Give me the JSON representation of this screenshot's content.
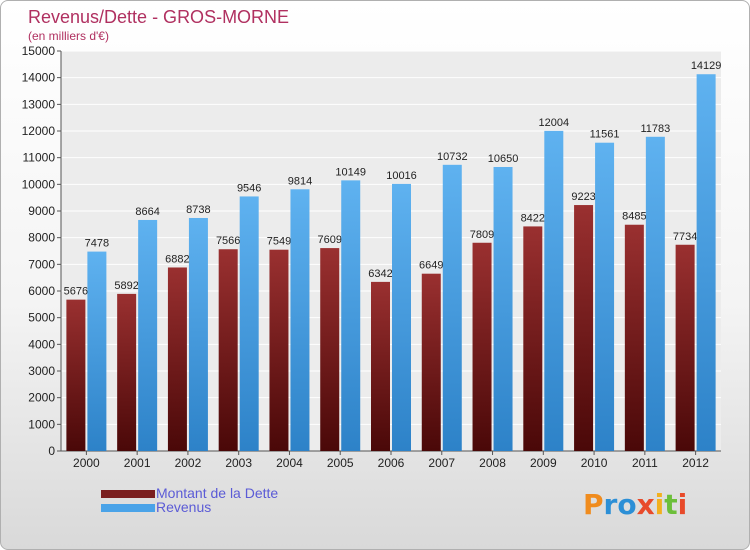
{
  "title": "Revenus/Dette - GROS-MORNE",
  "subtitle": "(en milliers d'€)",
  "logo": {
    "text": "Proxiti",
    "colors": [
      "#f08c1e",
      "#2c8fd6",
      "#2c8fd6",
      "#e84a2a",
      "#f2b01e",
      "#6cbf3a",
      "#e84a2a"
    ]
  },
  "colors": {
    "dette": "#7a1e1e",
    "revenus": "#4aa3e8"
  },
  "chart_data": {
    "type": "bar",
    "title": "Revenus/Dette - GROS-MORNE",
    "ylabel": "",
    "xlabel": "",
    "ylim": [
      0,
      15000
    ],
    "yticks": [
      0,
      1000,
      2000,
      3000,
      4000,
      5000,
      6000,
      7000,
      8000,
      9000,
      10000,
      11000,
      12000,
      13000,
      14000,
      15000
    ],
    "grid": true,
    "legend_position": "bottom-left",
    "categories": [
      "2000",
      "2001",
      "2002",
      "2003",
      "2004",
      "2005",
      "2006",
      "2007",
      "2008",
      "2009",
      "2010",
      "2011",
      "2012"
    ],
    "series": [
      {
        "name": "Montant de la Dette",
        "values": [
          5676,
          5892,
          6882,
          7566,
          7549,
          7609,
          6342,
          6649,
          7809,
          8422,
          9223,
          8485,
          7734
        ]
      },
      {
        "name": "Revenus",
        "values": [
          7478,
          8664,
          8738,
          9546,
          9814,
          10149,
          10016,
          10732,
          10650,
          12004,
          11561,
          11783,
          14129
        ]
      }
    ]
  }
}
